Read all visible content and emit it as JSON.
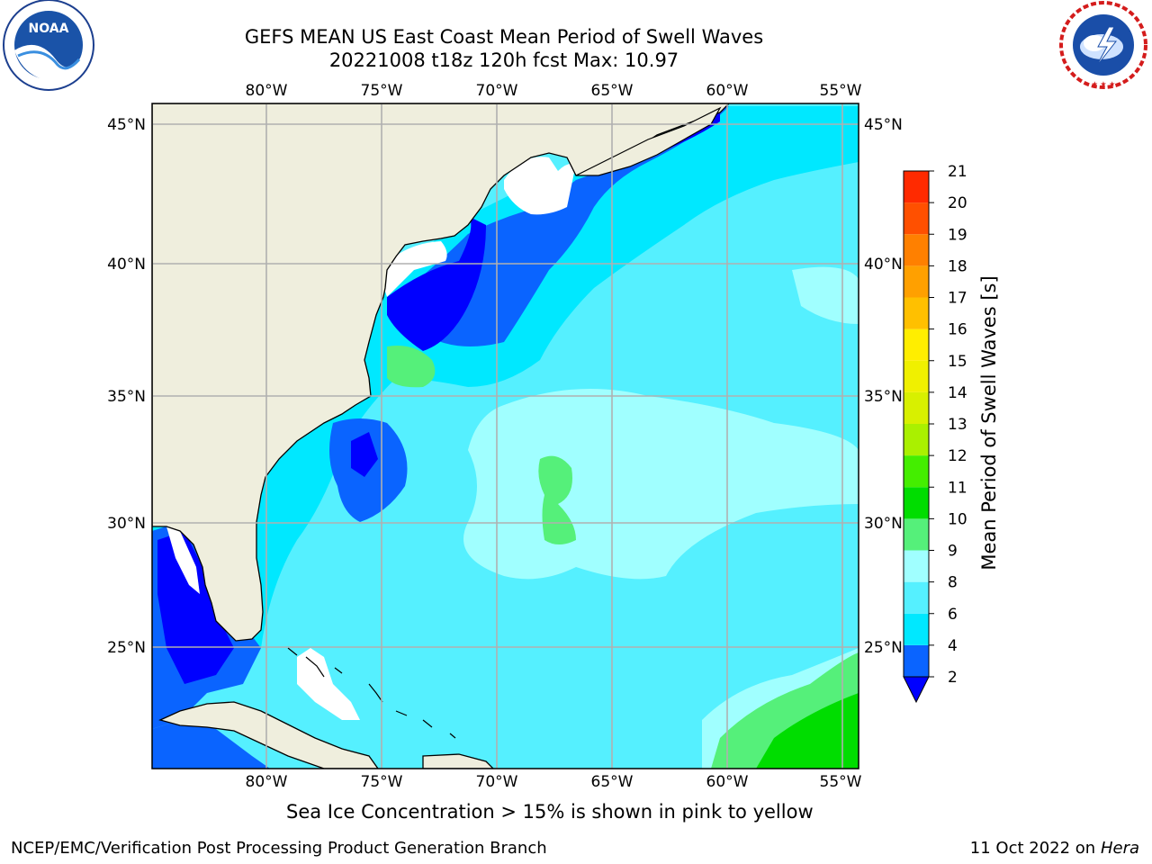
{
  "title": {
    "line1": "GEFS MEAN US East Coast Mean Period of Swell Waves",
    "line2": "20221008 t18z 120h fcst   Max: 10.97"
  },
  "logos": {
    "left": {
      "name": "NOAA",
      "ring_text": "NATIONAL OCEANIC AND ATMOSPHERIC ADMINISTRATION · U.S. DEPARTMENT OF COMMERCE"
    },
    "right": {
      "name": "NATIONAL WEATHER SERVICE"
    }
  },
  "map": {
    "lon_labels": [
      "80°W",
      "75°W",
      "70°W",
      "65°W",
      "60°W",
      "55°W"
    ],
    "lat_labels": [
      "45°N",
      "40°N",
      "35°N",
      "30°N",
      "25°N"
    ],
    "colors": {
      "land": "#efeedd",
      "grid": "#b0b0b0",
      "coast": "#000000"
    }
  },
  "colorbar": {
    "label": "Mean Period of Swell Waves [s]",
    "ticks": [
      "2",
      "4",
      "6",
      "8",
      "9",
      "10",
      "11",
      "12",
      "13",
      "14",
      "15",
      "16",
      "17",
      "18",
      "19",
      "20",
      "21"
    ],
    "colors": [
      "#0a64ff",
      "#00e8ff",
      "#55f0ff",
      "#a0ffff",
      "#55f07a",
      "#00dd00",
      "#44ee00",
      "#aaf000",
      "#d8f000",
      "#f0f000",
      "#ffee00",
      "#ffc000",
      "#ffa000",
      "#ff8000",
      "#ff5000",
      "#ff2a00"
    ],
    "underflow_color": "#0000ff"
  },
  "caption": "Sea Ice Concentration > 15% is shown in pink to yellow",
  "footer": {
    "left": "NCEP/EMC/Verification Post Processing Product Generation Branch",
    "right_prefix": "11 Oct 2022 on ",
    "right_machine": "Hera"
  }
}
